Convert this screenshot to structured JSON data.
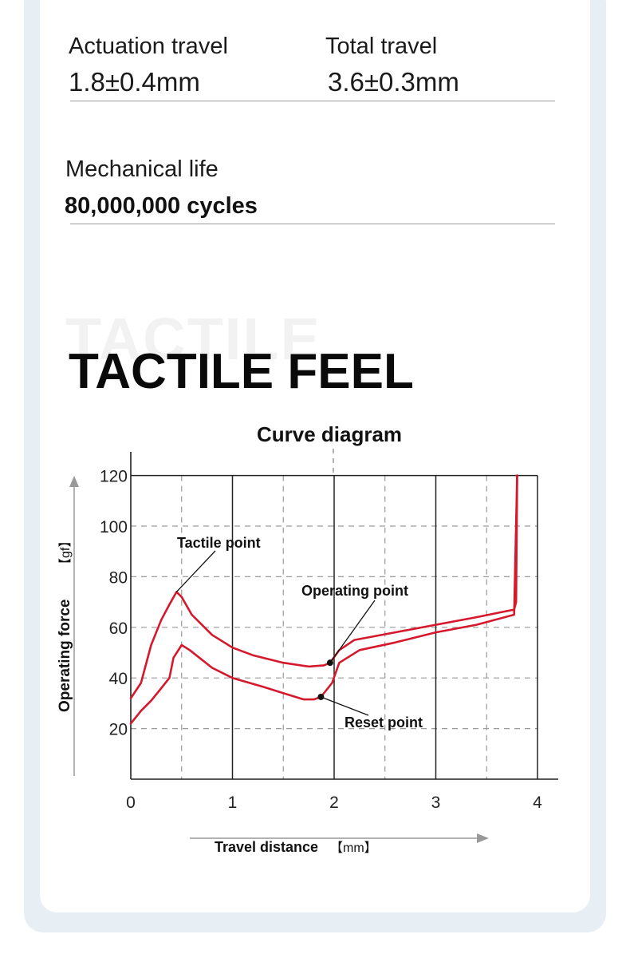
{
  "specs": {
    "actuation_travel": {
      "label": "Actuation travel",
      "value": "1.8±0.4mm"
    },
    "total_travel": {
      "label": "Total travel",
      "value": "3.6±0.3mm"
    },
    "mechanical_life": {
      "label": "Mechanical life",
      "value": "80,000,000 cycles"
    }
  },
  "section": {
    "ghost_title": "TACTILE",
    "title": "TACTILE FEEL"
  },
  "chart_data": {
    "type": "line",
    "title": "Curve diagram",
    "xlabel": "Travel distance",
    "xunit": "【mm】",
    "ylabel": "Operating force",
    "yunit": "【gf】",
    "xlim": [
      0,
      4
    ],
    "ylim": [
      0,
      120
    ],
    "x_ticks": [
      0,
      1,
      2,
      3,
      4
    ],
    "y_ticks": [
      20,
      40,
      60,
      80,
      100,
      120
    ],
    "grid": "solid at integer x, dashed at half x and at y ticks",
    "series_color": "#d5182c",
    "series": [
      {
        "x": [
          0,
          0.1,
          0.2,
          0.3,
          0.38,
          0.45,
          0.5,
          0.6,
          0.8,
          1.0,
          1.2,
          1.5,
          1.75,
          1.9,
          1.96,
          2.05,
          2.2,
          2.6,
          3.0,
          3.4,
          3.77,
          3.79,
          3.8
        ],
        "values": [
          32,
          38,
          53,
          63,
          69,
          74,
          72,
          65,
          57,
          52,
          49,
          46,
          44.5,
          45,
          46,
          51,
          55,
          58,
          61,
          64,
          67,
          70,
          120
        ]
      },
      {
        "x": [
          0,
          0.1,
          0.2,
          0.3,
          0.38,
          0.42,
          0.5,
          0.58,
          0.8,
          1.0,
          1.3,
          1.5,
          1.7,
          1.8,
          1.87,
          1.98,
          2.05,
          2.25,
          2.6,
          3.0,
          3.4,
          3.77,
          3.8
        ],
        "values": [
          22,
          27,
          31,
          36,
          40,
          48,
          53,
          51,
          44,
          40,
          36.5,
          34,
          31.5,
          31.5,
          32.5,
          38,
          46,
          51,
          54,
          58,
          61,
          65,
          120
        ]
      }
    ],
    "annotations": [
      {
        "text": "Tactile point",
        "x": 0.45,
        "y": 74
      },
      {
        "text": "Operating point",
        "x": 1.96,
        "y": 46
      },
      {
        "text": "Reset point",
        "x": 1.87,
        "y": 32.5
      }
    ]
  }
}
